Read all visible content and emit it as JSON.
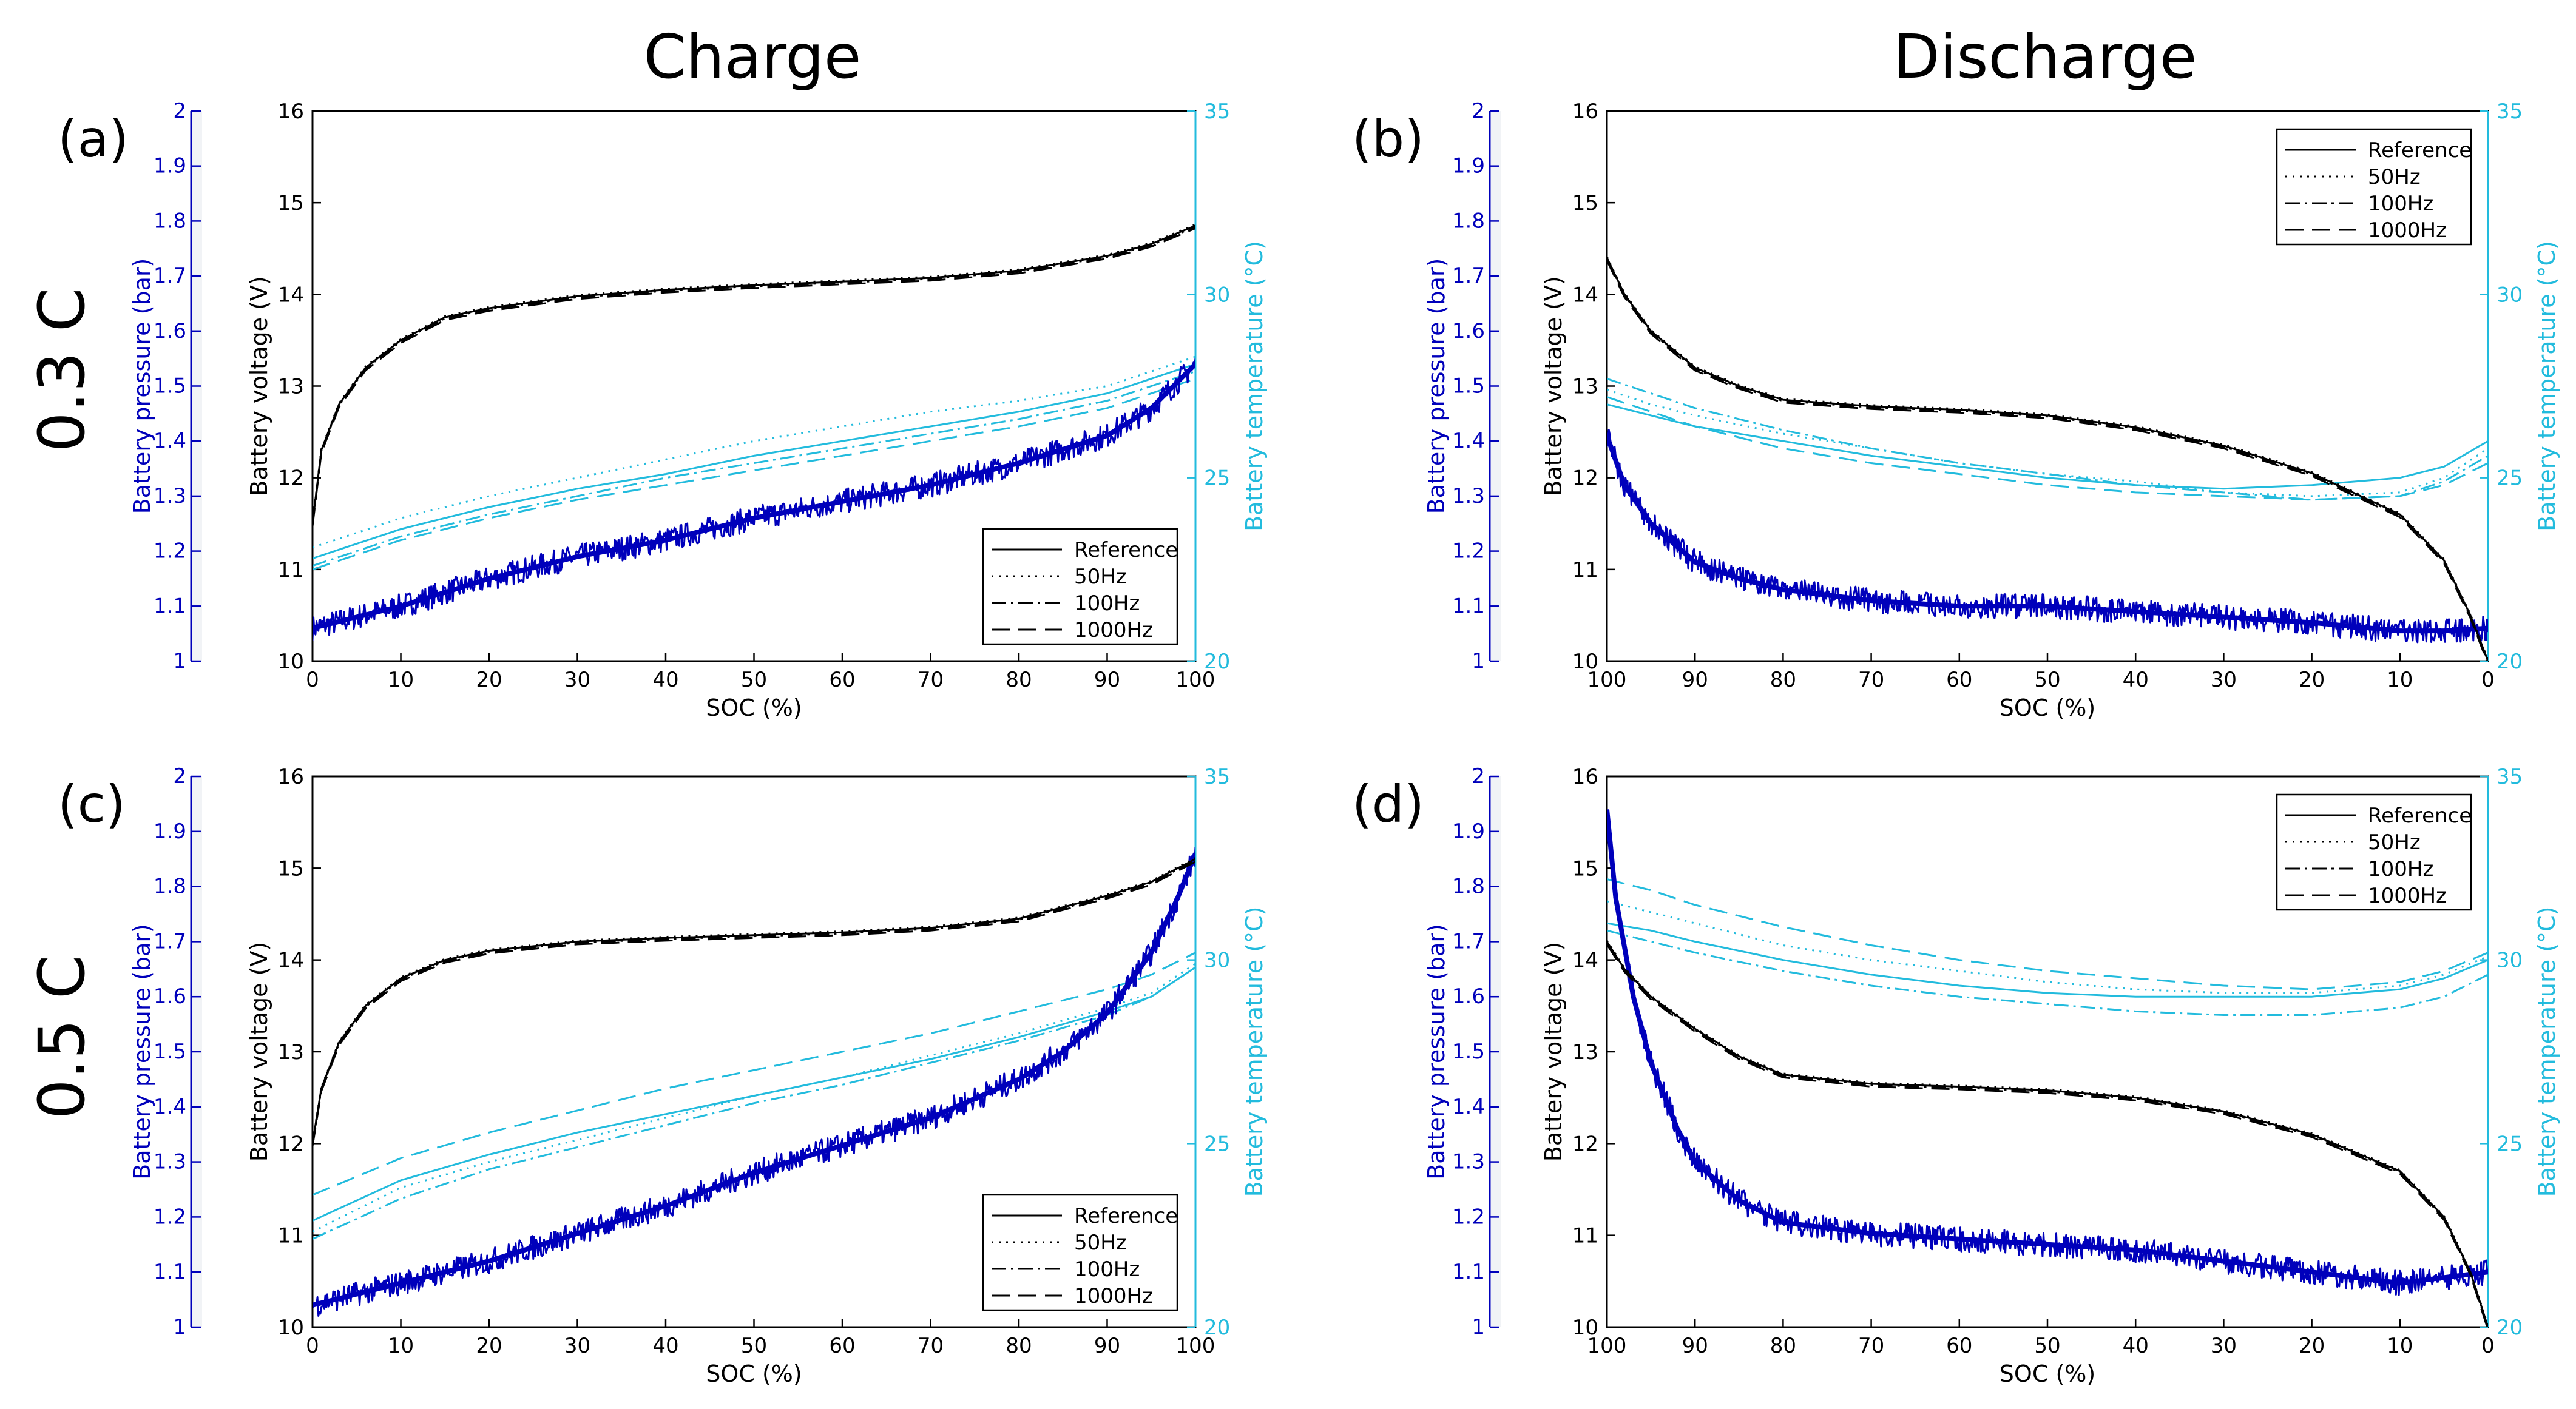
{
  "figure": {
    "column_titles": [
      "Charge",
      "Discharge"
    ],
    "row_labels": [
      "0.3 C",
      "0.5 C"
    ]
  },
  "colors": {
    "voltage": "#000000",
    "pressure": "#0000bb",
    "temperature": "#22bbdd"
  },
  "chart_data": [
    {
      "panel": "(a)",
      "type": "line",
      "mode": "charge",
      "c_rate": "0.3 C",
      "xlabel": "SOC (%)",
      "xlim": [
        0,
        100
      ],
      "xticks": [
        0,
        10,
        20,
        30,
        40,
        50,
        60,
        70,
        80,
        90,
        100
      ],
      "ylabel_left": "Battery voltage (V)",
      "ylim_left": [
        10,
        16
      ],
      "yticks_left": [
        10,
        11,
        12,
        13,
        14,
        15,
        16
      ],
      "ylabel_pressure": "Battery pressure (bar)",
      "ylim_pressure": [
        1,
        2
      ],
      "yticks_pressure": [
        "1",
        "1.1",
        "1.2",
        "1.3",
        "1.4",
        "1.5",
        "1.6",
        "1.7",
        "1.8",
        "1.9",
        "2"
      ],
      "ylabel_right": "Battery temperature (°C)",
      "ylim_right": [
        20,
        35
      ],
      "yticks_right": [
        20,
        25,
        30,
        35
      ],
      "legend": [
        "Reference",
        "50Hz",
        "100Hz",
        "1000Hz"
      ],
      "legend_position": "bottom-right",
      "voltage": {
        "x": [
          0,
          1,
          3,
          6,
          10,
          15,
          20,
          30,
          40,
          50,
          60,
          70,
          80,
          90,
          95,
          100
        ],
        "y": [
          11.5,
          12.3,
          12.8,
          13.2,
          13.5,
          13.75,
          13.85,
          13.98,
          14.05,
          14.1,
          14.14,
          14.18,
          14.26,
          14.42,
          14.55,
          14.75
        ]
      },
      "pressure": {
        "x": [
          0,
          10,
          20,
          30,
          40,
          50,
          60,
          70,
          80,
          90,
          95,
          100
        ],
        "y": [
          1.06,
          1.1,
          1.15,
          1.19,
          1.22,
          1.26,
          1.29,
          1.32,
          1.36,
          1.41,
          1.46,
          1.54
        ]
      },
      "temperature": {
        "x": [
          0,
          10,
          20,
          30,
          40,
          50,
          60,
          70,
          80,
          90,
          100
        ],
        "series": [
          {
            "name": "Reference",
            "y": [
              22.8,
              23.6,
              24.2,
              24.7,
              25.1,
              25.6,
              26.0,
              26.4,
              26.8,
              27.3,
              28.1
            ]
          },
          {
            "name": "50Hz",
            "y": [
              23.1,
              23.9,
              24.5,
              25.0,
              25.5,
              26.0,
              26.4,
              26.8,
              27.1,
              27.5,
              28.3
            ]
          },
          {
            "name": "100Hz",
            "y": [
              22.6,
              23.4,
              24.0,
              24.5,
              25.0,
              25.4,
              25.8,
              26.2,
              26.6,
              27.1,
              27.9
            ]
          },
          {
            "name": "1000Hz",
            "y": [
              22.5,
              23.3,
              23.9,
              24.4,
              24.8,
              25.2,
              25.6,
              26.0,
              26.4,
              26.9,
              27.7
            ]
          }
        ]
      }
    },
    {
      "panel": "(b)",
      "type": "line",
      "mode": "discharge",
      "c_rate": "0.3 C",
      "xlabel": "SOC (%)",
      "xlim": [
        100,
        0
      ],
      "xticks": [
        100,
        90,
        80,
        70,
        60,
        50,
        40,
        30,
        20,
        10,
        0
      ],
      "ylabel_left": "Battery voltage (V)",
      "ylim_left": [
        10,
        16
      ],
      "yticks_left": [
        10,
        11,
        12,
        13,
        14,
        15,
        16
      ],
      "ylabel_pressure": "Battery pressure (bar)",
      "ylim_pressure": [
        1,
        2
      ],
      "yticks_pressure": [
        "1",
        "1.1",
        "1.2",
        "1.3",
        "1.4",
        "1.5",
        "1.6",
        "1.7",
        "1.8",
        "1.9",
        "2"
      ],
      "ylabel_right": "Battery temperature (°C)",
      "ylim_right": [
        20,
        35
      ],
      "yticks_right": [
        20,
        25,
        30,
        35
      ],
      "legend": [
        "Reference",
        "50Hz",
        "100Hz",
        "1000Hz"
      ],
      "legend_position": "top-right",
      "voltage": {
        "x": [
          100,
          98,
          95,
          90,
          85,
          80,
          70,
          60,
          50,
          40,
          30,
          20,
          10,
          5,
          2,
          0
        ],
        "y": [
          14.4,
          14.0,
          13.6,
          13.2,
          13.0,
          12.85,
          12.78,
          12.74,
          12.68,
          12.55,
          12.35,
          12.05,
          11.6,
          11.1,
          10.5,
          10.0
        ]
      },
      "pressure": {
        "x": [
          100,
          98,
          95,
          90,
          85,
          80,
          70,
          60,
          50,
          40,
          30,
          20,
          10,
          5,
          0
        ],
        "y": [
          1.41,
          1.32,
          1.25,
          1.18,
          1.15,
          1.13,
          1.11,
          1.1,
          1.1,
          1.09,
          1.08,
          1.07,
          1.055,
          1.055,
          1.06
        ]
      },
      "temperature": {
        "x": [
          100,
          95,
          90,
          80,
          70,
          60,
          50,
          40,
          30,
          20,
          10,
          5,
          0
        ],
        "series": [
          {
            "name": "Reference",
            "y": [
              27.0,
              26.7,
              26.4,
              26.0,
              25.6,
              25.3,
              25.0,
              24.8,
              24.7,
              24.8,
              25.0,
              25.3,
              26.0
            ]
          },
          {
            "name": "50Hz",
            "y": [
              27.4,
              27.0,
              26.7,
              26.2,
              25.8,
              25.4,
              25.1,
              24.9,
              24.6,
              24.5,
              24.6,
              25.0,
              25.8
            ]
          },
          {
            "name": "100Hz",
            "y": [
              27.7,
              27.3,
              26.9,
              26.3,
              25.8,
              25.4,
              25.1,
              24.8,
              24.6,
              24.4,
              24.5,
              24.9,
              25.6
            ]
          },
          {
            "name": "1000Hz",
            "y": [
              27.2,
              26.8,
              26.4,
              25.8,
              25.4,
              25.1,
              24.8,
              24.6,
              24.5,
              24.4,
              24.5,
              24.8,
              25.4
            ]
          }
        ]
      }
    },
    {
      "panel": "(c)",
      "type": "line",
      "mode": "charge",
      "c_rate": "0.5 C",
      "xlabel": "SOC (%)",
      "xlim": [
        0,
        100
      ],
      "xticks": [
        0,
        10,
        20,
        30,
        40,
        50,
        60,
        70,
        80,
        90,
        100
      ],
      "ylabel_left": "Battery voltage (V)",
      "ylim_left": [
        10,
        16
      ],
      "yticks_left": [
        10,
        11,
        12,
        13,
        14,
        15,
        16
      ],
      "ylabel_pressure": "Battery pressure (bar)",
      "ylim_pressure": [
        1,
        2
      ],
      "yticks_pressure": [
        "1",
        "1.1",
        "1.2",
        "1.3",
        "1.4",
        "1.5",
        "1.6",
        "1.7",
        "1.8",
        "1.9",
        "2"
      ],
      "ylabel_right": "Battery temperature (°C)",
      "ylim_right": [
        20,
        35
      ],
      "yticks_right": [
        20,
        25,
        30,
        35
      ],
      "legend": [
        "Reference",
        "50Hz",
        "100Hz",
        "1000Hz"
      ],
      "legend_position": "bottom-right",
      "voltage": {
        "x": [
          0,
          1,
          3,
          6,
          10,
          15,
          20,
          30,
          40,
          50,
          60,
          70,
          80,
          90,
          95,
          100
        ],
        "y": [
          12.0,
          12.6,
          13.1,
          13.5,
          13.8,
          14.0,
          14.1,
          14.2,
          14.24,
          14.27,
          14.3,
          14.35,
          14.45,
          14.7,
          14.85,
          15.1
        ]
      },
      "pressure": {
        "x": [
          0,
          10,
          20,
          30,
          40,
          50,
          60,
          70,
          80,
          85,
          90,
          95,
          98,
          100
        ],
        "y": [
          1.04,
          1.08,
          1.12,
          1.17,
          1.22,
          1.28,
          1.33,
          1.38,
          1.45,
          1.5,
          1.57,
          1.68,
          1.78,
          1.86
        ]
      },
      "temperature": {
        "x": [
          0,
          10,
          20,
          30,
          40,
          50,
          60,
          70,
          80,
          90,
          95,
          100
        ],
        "series": [
          {
            "name": "Reference",
            "y": [
              22.9,
              24.0,
              24.7,
              25.3,
              25.8,
              26.3,
              26.8,
              27.3,
              27.9,
              28.6,
              29.0,
              29.8
            ]
          },
          {
            "name": "50Hz",
            "y": [
              22.6,
              23.8,
              24.5,
              25.1,
              25.7,
              26.3,
              26.8,
              27.4,
              28.0,
              28.7,
              29.1,
              29.9
            ]
          },
          {
            "name": "100Hz",
            "y": [
              22.4,
              23.5,
              24.3,
              24.9,
              25.5,
              26.1,
              26.6,
              27.2,
              27.8,
              28.5,
              29.0,
              29.8
            ]
          },
          {
            "name": "1000Hz",
            "y": [
              23.6,
              24.6,
              25.3,
              25.9,
              26.5,
              27.0,
              27.5,
              28.0,
              28.6,
              29.2,
              29.6,
              30.2
            ]
          }
        ]
      }
    },
    {
      "panel": "(d)",
      "type": "line",
      "mode": "discharge",
      "c_rate": "0.5 C",
      "xlabel": "SOC (%)",
      "xlim": [
        100,
        0
      ],
      "xticks": [
        100,
        90,
        80,
        70,
        60,
        50,
        40,
        30,
        20,
        10,
        0
      ],
      "ylabel_left": "Battery voltage (V)",
      "ylim_left": [
        10,
        16
      ],
      "yticks_left": [
        10,
        11,
        12,
        13,
        14,
        15,
        16
      ],
      "ylabel_pressure": "Battery pressure (bar)",
      "ylim_pressure": [
        1,
        2
      ],
      "yticks_pressure": [
        "1",
        "1.1",
        "1.2",
        "1.3",
        "1.4",
        "1.5",
        "1.6",
        "1.7",
        "1.8",
        "1.9",
        "2"
      ],
      "ylabel_right": "Battery temperature (°C)",
      "ylim_right": [
        20,
        35
      ],
      "yticks_right": [
        20,
        25,
        30,
        35
      ],
      "legend": [
        "Reference",
        "50Hz",
        "100Hz",
        "1000Hz"
      ],
      "legend_position": "top-right",
      "voltage": {
        "x": [
          100,
          98,
          95,
          90,
          85,
          80,
          70,
          60,
          50,
          40,
          30,
          20,
          10,
          5,
          2,
          0
        ],
        "y": [
          14.2,
          13.9,
          13.6,
          13.25,
          12.95,
          12.75,
          12.65,
          12.62,
          12.58,
          12.5,
          12.35,
          12.1,
          11.7,
          11.2,
          10.6,
          10.0
        ]
      },
      "pressure": {
        "x": [
          100,
          99,
          97,
          95,
          92,
          90,
          85,
          80,
          70,
          60,
          50,
          40,
          30,
          20,
          10,
          5,
          0
        ],
        "y": [
          1.94,
          1.78,
          1.6,
          1.48,
          1.36,
          1.3,
          1.23,
          1.19,
          1.17,
          1.16,
          1.15,
          1.14,
          1.12,
          1.1,
          1.08,
          1.09,
          1.1
        ]
      },
      "temperature": {
        "x": [
          100,
          95,
          90,
          80,
          70,
          60,
          50,
          40,
          30,
          20,
          10,
          5,
          0
        ],
        "series": [
          {
            "name": "Reference",
            "y": [
              31.0,
              30.8,
              30.5,
              30.0,
              29.6,
              29.3,
              29.1,
              29.0,
              29.0,
              29.0,
              29.2,
              29.5,
              30.0
            ]
          },
          {
            "name": "50Hz",
            "y": [
              31.6,
              31.3,
              31.0,
              30.4,
              30.0,
              29.7,
              29.4,
              29.2,
              29.1,
              29.1,
              29.3,
              29.6,
              30.1
            ]
          },
          {
            "name": "100Hz",
            "y": [
              30.8,
              30.5,
              30.2,
              29.7,
              29.3,
              29.0,
              28.8,
              28.6,
              28.5,
              28.5,
              28.7,
              29.0,
              29.6
            ]
          },
          {
            "name": "1000Hz",
            "y": [
              32.2,
              31.9,
              31.5,
              30.9,
              30.4,
              30.0,
              29.7,
              29.5,
              29.3,
              29.2,
              29.4,
              29.7,
              30.2
            ]
          }
        ]
      }
    }
  ]
}
